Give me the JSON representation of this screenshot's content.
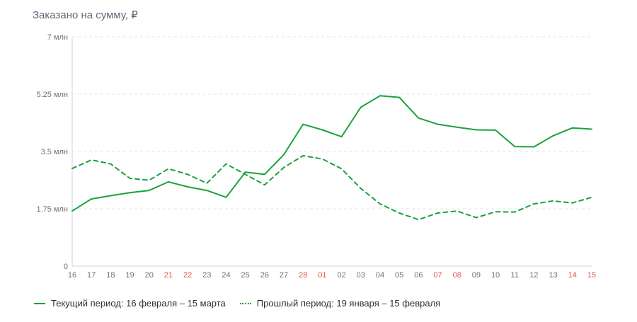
{
  "title": "Заказано на сумму, ₽",
  "colors": {
    "series": "#1aa23c",
    "weekend": "#e0574f",
    "axis_text": "#6b7280",
    "grid": "#e2e4e8"
  },
  "chart_data": {
    "type": "line",
    "x": [
      "16",
      "17",
      "18",
      "19",
      "20",
      "21",
      "22",
      "23",
      "24",
      "25",
      "26",
      "27",
      "28",
      "01",
      "02",
      "03",
      "04",
      "05",
      "06",
      "07",
      "08",
      "09",
      "10",
      "11",
      "12",
      "13",
      "14",
      "15"
    ],
    "weekend_flags": [
      false,
      false,
      false,
      false,
      false,
      true,
      true,
      false,
      false,
      false,
      false,
      false,
      true,
      true,
      false,
      false,
      false,
      false,
      false,
      true,
      true,
      false,
      false,
      false,
      false,
      false,
      true,
      true
    ],
    "y_ticks": [
      {
        "value": 0,
        "label": "0"
      },
      {
        "value": 1.75,
        "label": "1.75 млн"
      },
      {
        "value": 3.5,
        "label": "3.5 млн"
      },
      {
        "value": 5.25,
        "label": "5.25 млн"
      },
      {
        "value": 7,
        "label": "7 млн"
      }
    ],
    "ylim": [
      0,
      7
    ],
    "y_unit": "млн ₽",
    "grid": true,
    "legend_position": "bottom-left",
    "series": [
      {
        "name": "Текущий период: 16 февраля – 15 марта",
        "style": "solid",
        "values": [
          1.68,
          2.05,
          2.15,
          2.24,
          2.31,
          2.57,
          2.42,
          2.31,
          2.1,
          2.87,
          2.8,
          3.4,
          4.33,
          4.16,
          3.95,
          4.85,
          5.2,
          5.15,
          4.52,
          4.33,
          4.24,
          4.16,
          4.15,
          3.65,
          3.64,
          3.98,
          4.22,
          4.18
        ]
      },
      {
        "name": "Прошлый период: 19 января – 15 февраля",
        "style": "dashed",
        "values": [
          2.98,
          3.24,
          3.12,
          2.68,
          2.62,
          2.97,
          2.8,
          2.53,
          3.12,
          2.8,
          2.48,
          3.01,
          3.37,
          3.27,
          2.97,
          2.37,
          1.9,
          1.62,
          1.42,
          1.62,
          1.68,
          1.48,
          1.66,
          1.65,
          1.9,
          1.99,
          1.93,
          2.1
        ]
      }
    ]
  }
}
